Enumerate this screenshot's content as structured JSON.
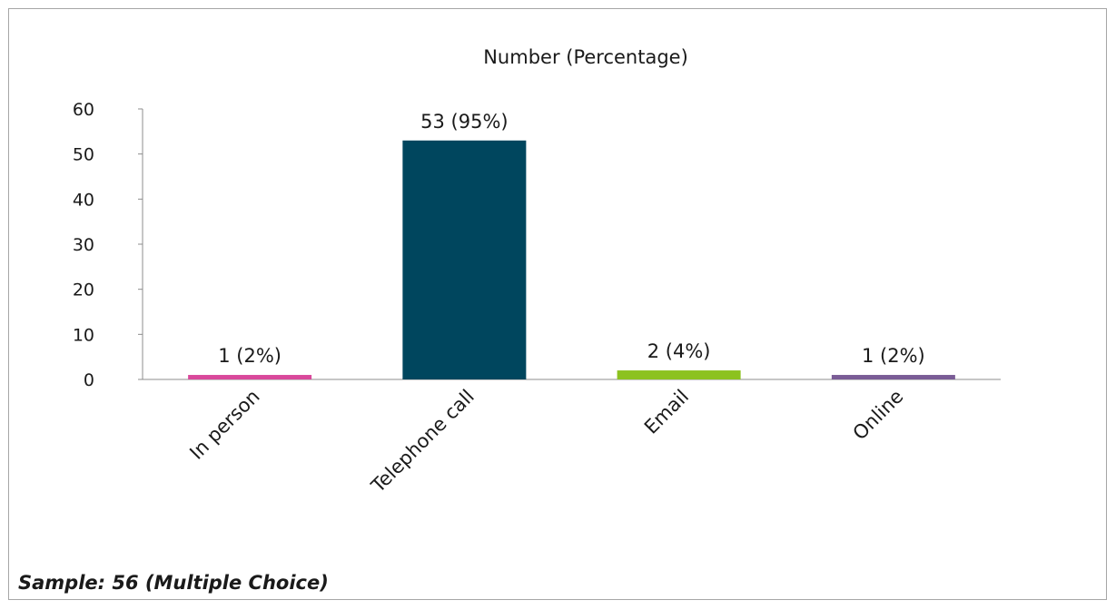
{
  "chart_data": {
    "type": "bar",
    "title": "Number (Percentage)",
    "categories": [
      "In person",
      "Telephone call",
      "Email",
      "Online"
    ],
    "values": [
      1,
      53,
      2,
      1
    ],
    "data_labels": [
      "1 (2%)",
      "53 (95%)",
      "2 (4%)",
      "1 (2%)"
    ],
    "colors": [
      "#d9489b",
      "#00465e",
      "#8cc21f",
      "#7a5c96"
    ],
    "ylim": [
      0,
      60
    ],
    "yticks": [
      0,
      10,
      20,
      30,
      40,
      50,
      60
    ],
    "grid": false,
    "legend": "none"
  },
  "footnote": "Sample: 56 (Multiple Choice)"
}
